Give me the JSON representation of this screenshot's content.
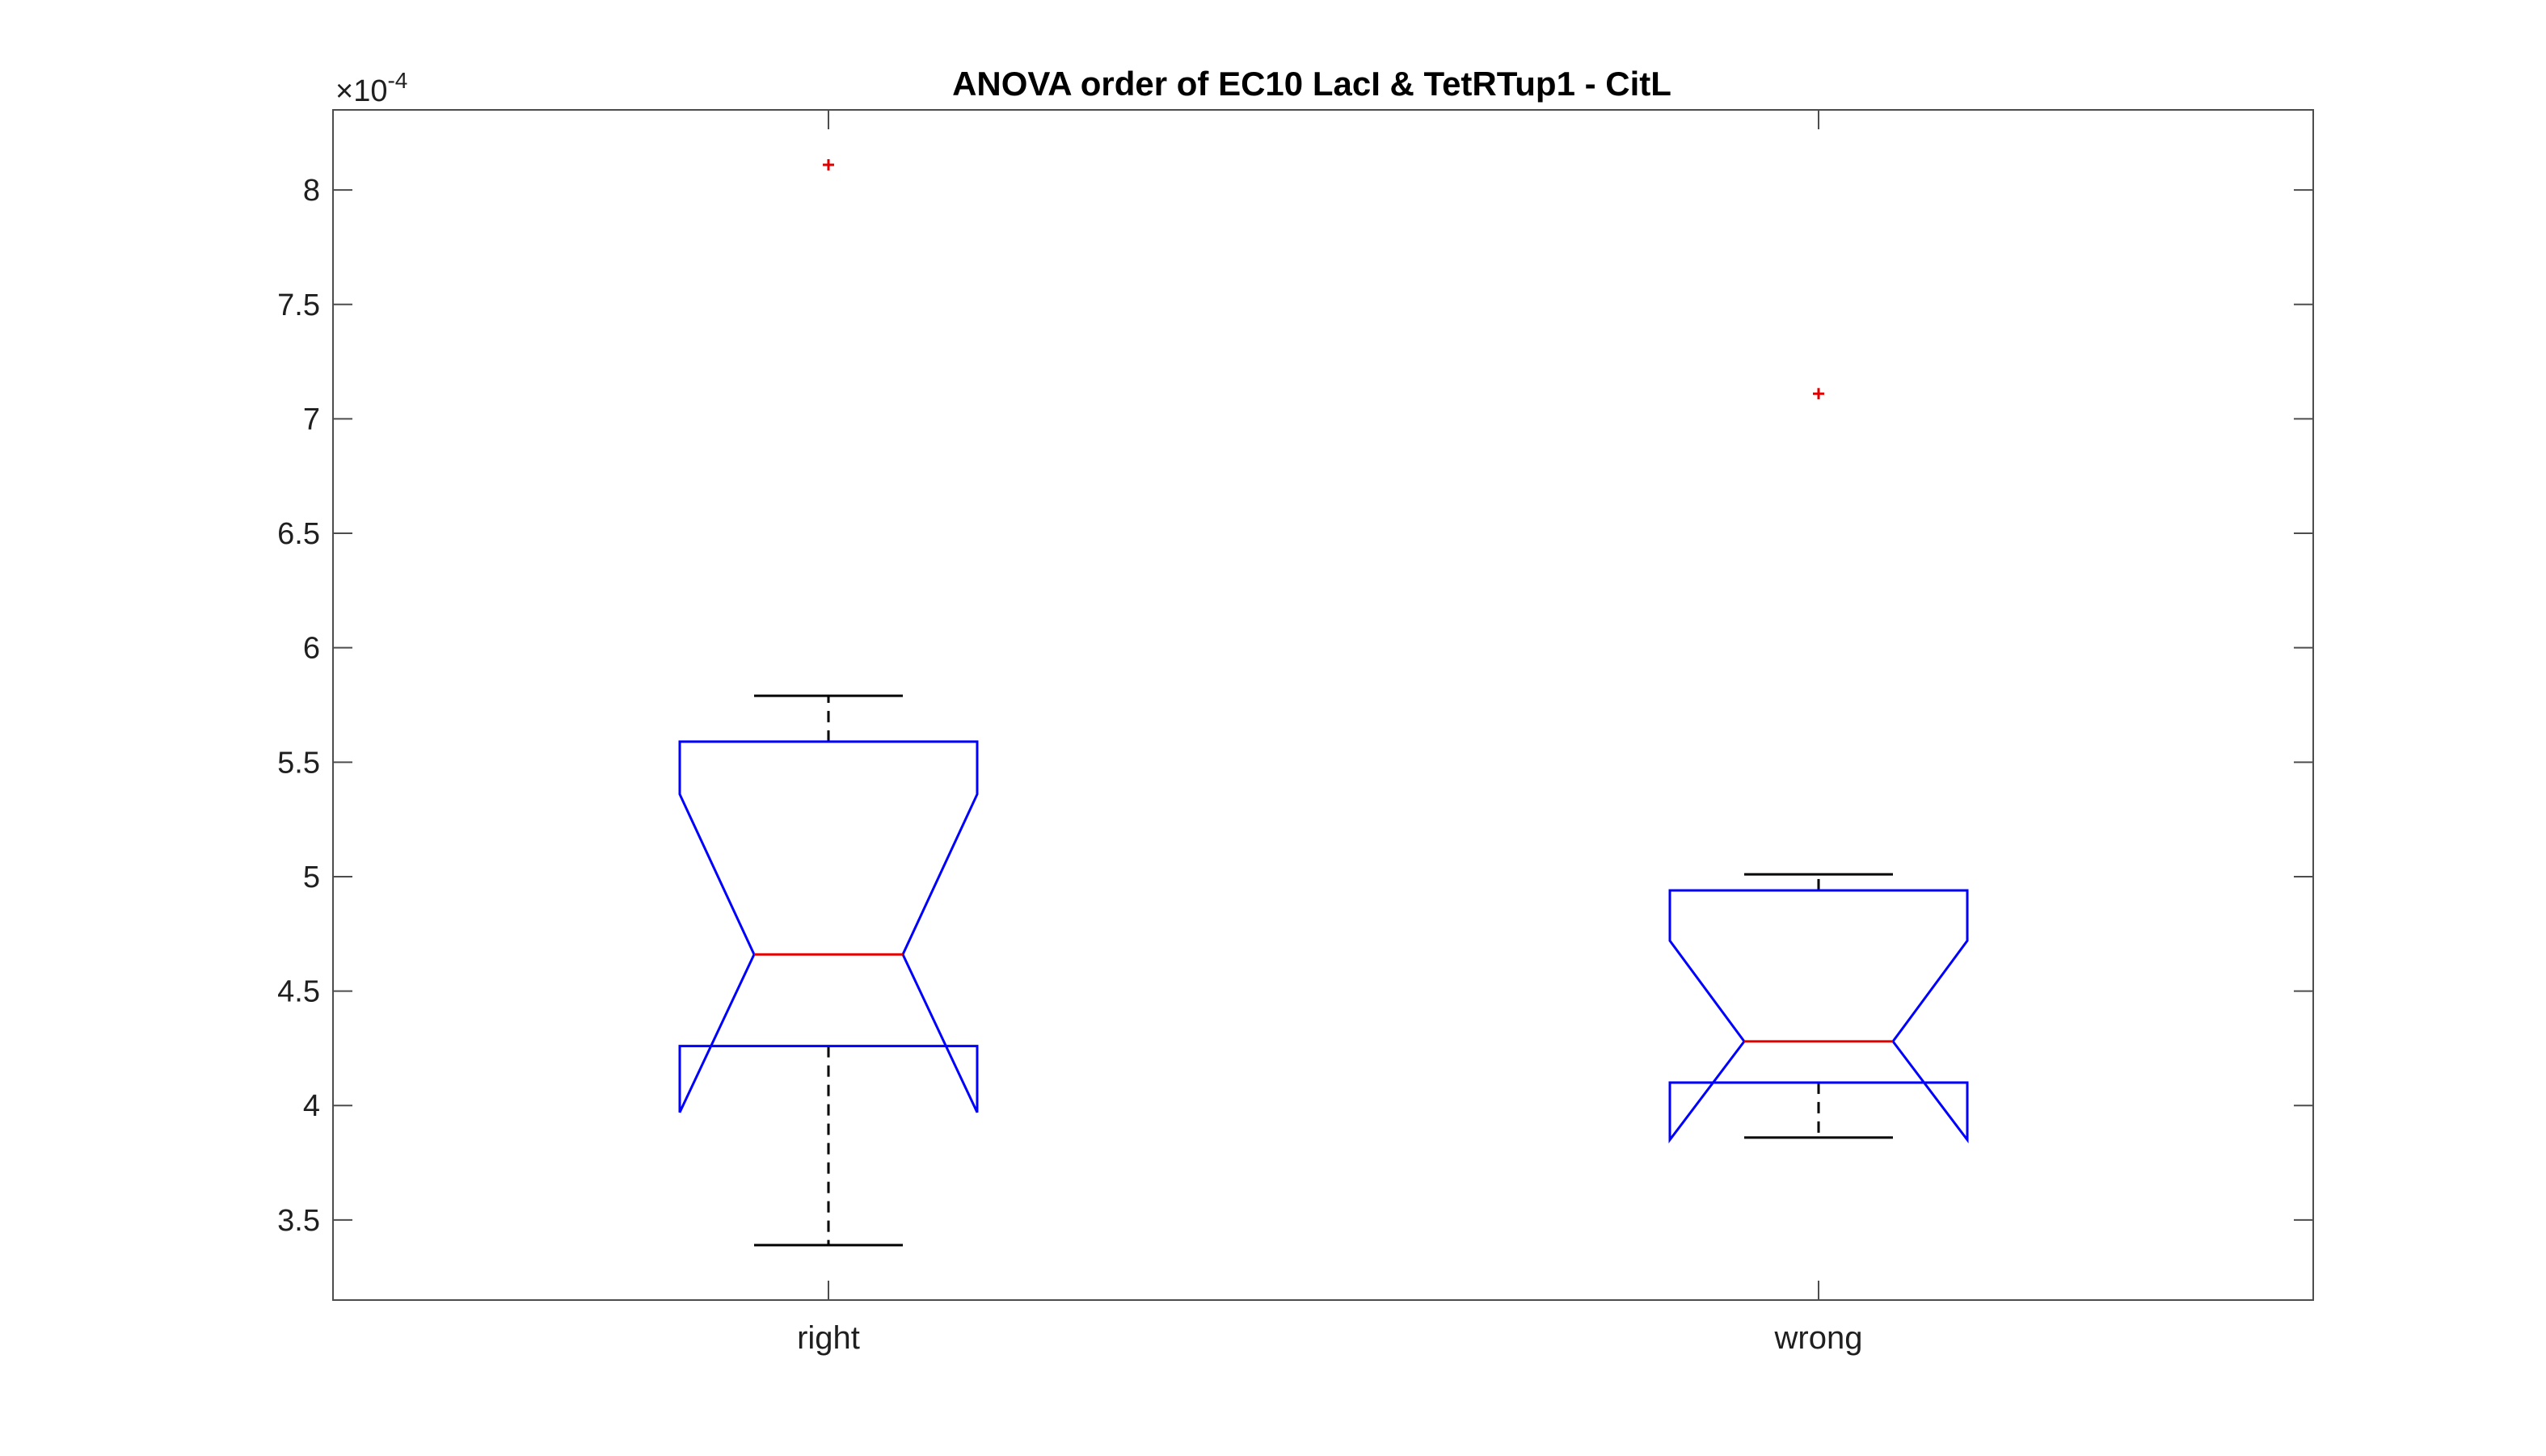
{
  "chart_data": {
    "type": "box",
    "title": "ANOVA order of EC10 LacI & TetRTup1 - CitL",
    "xlabel": "",
    "ylabel": "",
    "y_exponent": {
      "prefix": "×10",
      "power": "-4"
    },
    "ylim": [
      3.15,
      8.35
    ],
    "yticks": [
      3.5,
      4,
      4.5,
      5,
      5.5,
      6,
      6.5,
      7,
      7.5,
      8
    ],
    "ytick_labels": [
      "3.5",
      "4",
      "4.5",
      "5",
      "5.5",
      "6",
      "6.5",
      "7",
      "7.5",
      "8"
    ],
    "categories": [
      "right",
      "wrong"
    ],
    "notched": true,
    "grid": false,
    "boxes": [
      {
        "category": "right",
        "lower_whisker": 3.39,
        "q1": 4.26,
        "notch_low": 3.97,
        "median": 4.66,
        "notch_high": 5.36,
        "q3": 5.59,
        "upper_whisker": 5.79,
        "outliers": [
          8.11
        ]
      },
      {
        "category": "wrong",
        "lower_whisker": 3.86,
        "q1": 4.1,
        "notch_low": 3.85,
        "median": 4.28,
        "notch_high": 4.72,
        "q3": 4.94,
        "upper_whisker": 5.01,
        "outliers": [
          7.11
        ]
      }
    ],
    "colors": {
      "box": "#0000ff",
      "median": "#e00000",
      "whisker": "#000000",
      "outlier": "#e00000",
      "axis": "#4d4d4d"
    }
  }
}
